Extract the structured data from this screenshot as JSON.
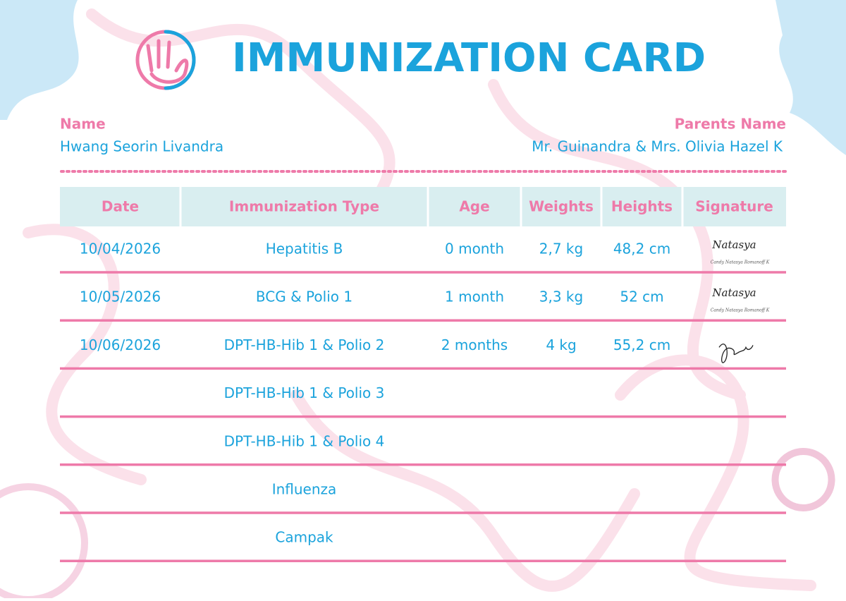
{
  "header": {
    "title": "IMMUNIZATION CARD"
  },
  "patient": {
    "name_label": "Name",
    "name": "Hwang Seorin Livandra",
    "parents_label": "Parents Name",
    "parents": "Mr. Guinandra & Mrs. Olivia Hazel K"
  },
  "table": {
    "columns": [
      "Date",
      "Immunization Type",
      "Age",
      "Weights",
      "Heights",
      "Signature"
    ],
    "rows": [
      {
        "date": "10/04/2026",
        "type": "Hepatitis B",
        "age": "0 month",
        "weight": "2,7 kg",
        "height": "48,2 cm",
        "signature": {
          "mark": "Natasya",
          "caption": "Candy Natasya Romanoff K"
        }
      },
      {
        "date": "10/05/2026",
        "type": "BCG & Polio 1",
        "age": "1 month",
        "weight": "3,3 kg",
        "height": "52 cm",
        "signature": {
          "mark": "Natasya",
          "caption": "Candy Natasya Romanoff K"
        }
      },
      {
        "date": "10/06/2026",
        "type": "DPT-HB-Hib 1 & Polio 2",
        "age": "2 months",
        "weight": "4 kg",
        "height": "55,2 cm"
      },
      {
        "type": "DPT-HB-Hib 1 & Polio 3"
      },
      {
        "type": "DPT-HB-Hib 1 & Polio 4"
      },
      {
        "type": "Influenza"
      },
      {
        "type": "Campak"
      }
    ]
  }
}
